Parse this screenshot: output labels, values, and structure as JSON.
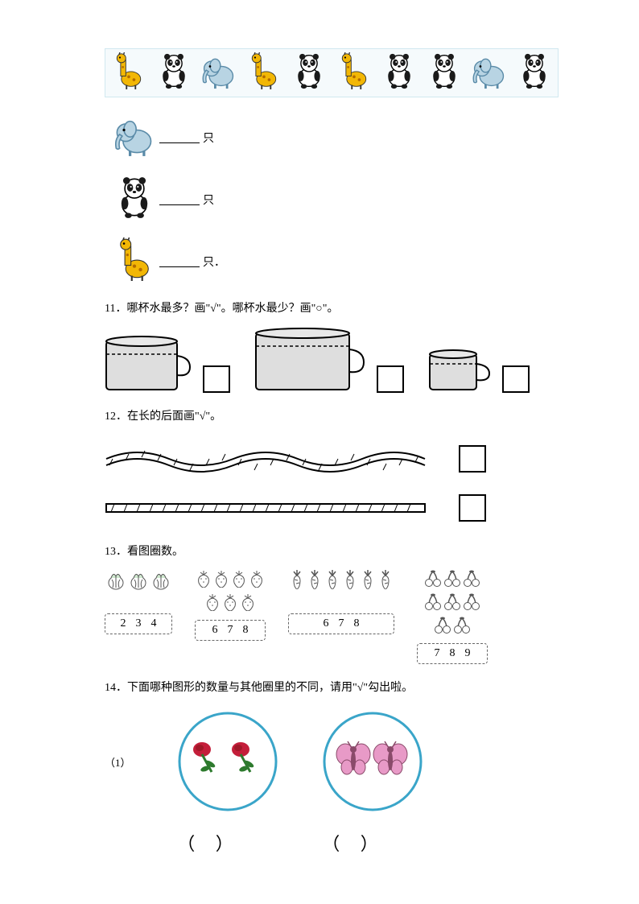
{
  "colors": {
    "giraffe_body": "#f2b705",
    "giraffe_spot": "#b36b00",
    "panda_black": "#1a1a1a",
    "panda_white": "#ffffff",
    "elephant_body": "#b8d4e3",
    "elephant_outline": "#5a8ba8",
    "cabbage": "#cfe8cf",
    "strawberry": "#f5b8b8",
    "carrot": "#f5c89e",
    "cherry": "#e89090",
    "rose_red": "#c41e3a",
    "rose_leaf": "#2d7a2d",
    "butterfly_pink": "#e89ac7",
    "butterfly_dark": "#8a4a6a",
    "circle_stroke": "#3aa5c9",
    "banner_bg": "#f5fafc"
  },
  "banner_sequence": [
    "giraffe",
    "panda",
    "elephant",
    "giraffe",
    "panda",
    "giraffe",
    "panda",
    "panda",
    "elephant",
    "panda"
  ],
  "count_rows": [
    {
      "animal": "elephant",
      "unit": "只"
    },
    {
      "animal": "panda",
      "unit": "只"
    },
    {
      "animal": "giraffe",
      "unit": "只．"
    }
  ],
  "q11": {
    "title": "11．哪杯水最多？画\"√\"。哪杯水最少？画\"○\"。"
  },
  "q12": {
    "title": "12．在长的后面画\"√\"。"
  },
  "q13": {
    "title": "13．看图圈数。",
    "items": [
      {
        "icon": "cabbage",
        "count": 3,
        "numbers": [
          "2",
          "3",
          "4"
        ],
        "perRow": 3
      },
      {
        "icon": "strawberry",
        "count": 7,
        "numbers": [
          "6",
          "7",
          "8"
        ],
        "perRow": 4
      },
      {
        "icon": "carrot",
        "count": 6,
        "numbers": [
          "6",
          "7",
          "8"
        ],
        "perRow": 6
      },
      {
        "icon": "cherry",
        "count": 8,
        "numbers": [
          "7",
          "8",
          "9"
        ],
        "perRow": 4
      }
    ]
  },
  "q14": {
    "title": "14．下面哪种图形的数量与其他圈里的不同，请用\"√\"勾出啦。",
    "sub": "（1）",
    "circles": [
      {
        "content": "roses",
        "count": 2
      },
      {
        "content": "butterflies",
        "count": 2
      }
    ],
    "paren": "（        ）"
  }
}
